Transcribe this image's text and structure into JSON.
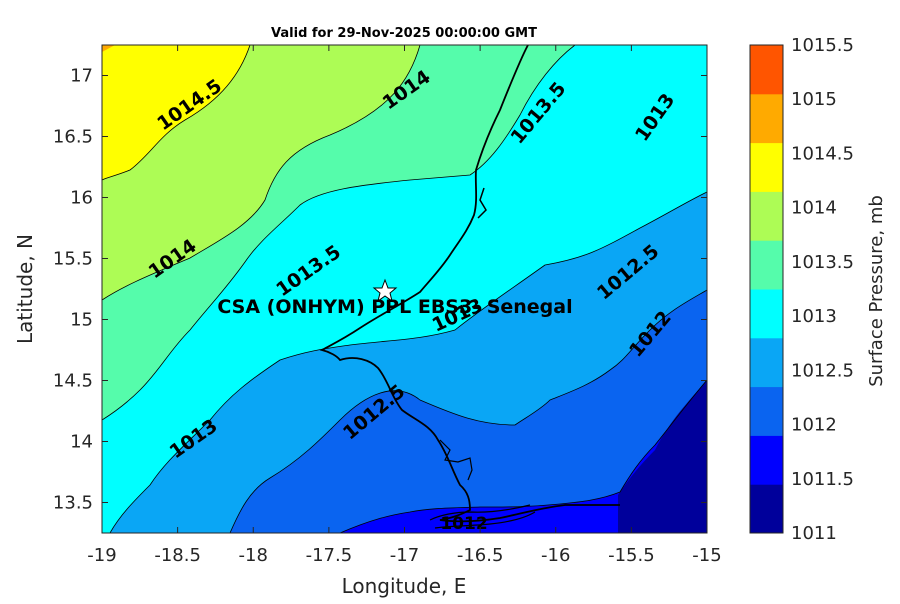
{
  "title": "Valid for 29-Nov-2025 00:00:00 GMT",
  "x_axis": {
    "label": "Longitude, E",
    "ticks": [
      "-19",
      "-18.5",
      "-18",
      "-17.5",
      "-17",
      "-16.5",
      "-16",
      "-15.5",
      "-15"
    ]
  },
  "y_axis": {
    "label": "Latitude, N",
    "ticks": [
      "13.5",
      "14",
      "14.5",
      "15",
      "15.5",
      "16",
      "16.5",
      "17"
    ]
  },
  "colorbar": {
    "label": "Surface Pressure, mb",
    "levels": [
      "1011",
      "1011.5",
      "1012",
      "1012.5",
      "1013",
      "1013.5",
      "1014",
      "1014.5",
      "1015",
      "1015.5"
    ],
    "colors": [
      "#00009b",
      "#0000ff",
      "#0a64f0",
      "#0aa6f5",
      "#00ffff",
      "#55fcab",
      "#adfc55",
      "#ffff00",
      "#ffaa00",
      "#ff5500"
    ]
  },
  "station": {
    "name": "CSA (ONHYM) PPL EBS3- Senegal",
    "marker": "star-icon"
  },
  "contour_labels": [
    "1014.5",
    "1014",
    "1013.5",
    "1013",
    "1014",
    "1013.5",
    "1013",
    "1012.5",
    "1013",
    "1012.5",
    "1012",
    "1012"
  ]
}
